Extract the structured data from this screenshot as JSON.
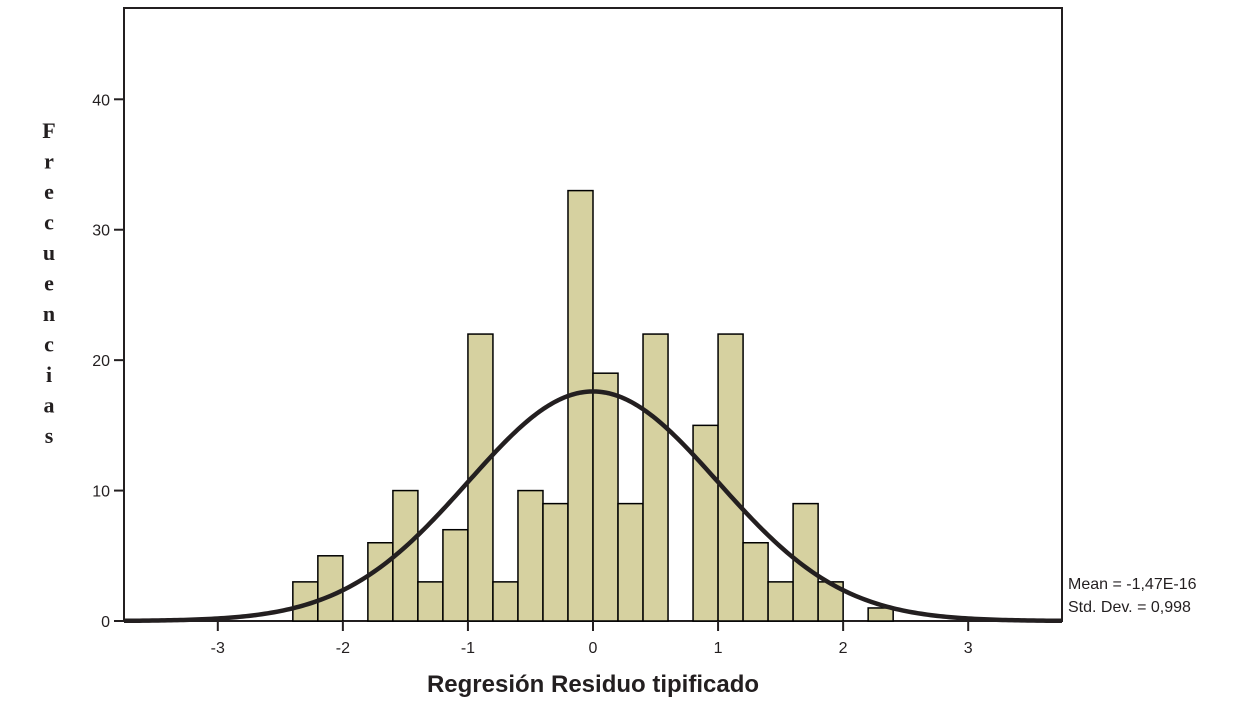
{
  "chart_data": {
    "type": "bar",
    "title": "",
    "xlabel": "Regresión Residuo tipificado",
    "ylabel": "Frecuencias",
    "xlim": [
      -3.75,
      3.75
    ],
    "ylim": [
      0,
      47
    ],
    "x_ticks": [
      -3,
      -2,
      -1,
      0,
      1,
      2,
      3
    ],
    "x_tick_labels": [
      "-3",
      "-2",
      "-1",
      "0",
      "1",
      "2",
      "3"
    ],
    "y_ticks": [
      0,
      10,
      20,
      30,
      40
    ],
    "y_tick_labels": [
      "0",
      "10",
      "20",
      "30",
      "40"
    ],
    "grid": false,
    "bar_color": "#d6d1a0",
    "bar_edge_color": "#000000",
    "bins": [
      {
        "start": -2.4,
        "end": -2.2,
        "value": 3
      },
      {
        "start": -2.2,
        "end": -2.0,
        "value": 5
      },
      {
        "start": -2.0,
        "end": -1.8,
        "value": 0
      },
      {
        "start": -1.8,
        "end": -1.6,
        "value": 6
      },
      {
        "start": -1.6,
        "end": -1.4,
        "value": 10
      },
      {
        "start": -1.4,
        "end": -1.2,
        "value": 3
      },
      {
        "start": -1.2,
        "end": -1.0,
        "value": 7
      },
      {
        "start": -1.0,
        "end": -0.8,
        "value": 22
      },
      {
        "start": -0.8,
        "end": -0.6,
        "value": 3
      },
      {
        "start": -0.6,
        "end": -0.4,
        "value": 10
      },
      {
        "start": -0.4,
        "end": -0.2,
        "value": 9
      },
      {
        "start": -0.2,
        "end": 0.0,
        "value": 33
      },
      {
        "start": 0.0,
        "end": 0.2,
        "value": 19
      },
      {
        "start": 0.2,
        "end": 0.4,
        "value": 9
      },
      {
        "start": 0.4,
        "end": 0.6,
        "value": 22
      },
      {
        "start": 0.6,
        "end": 0.8,
        "value": 0
      },
      {
        "start": 0.8,
        "end": 1.0,
        "value": 15
      },
      {
        "start": 1.0,
        "end": 1.2,
        "value": 22
      },
      {
        "start": 1.2,
        "end": 1.4,
        "value": 6
      },
      {
        "start": 1.4,
        "end": 1.6,
        "value": 3
      },
      {
        "start": 1.6,
        "end": 1.8,
        "value": 9
      },
      {
        "start": 1.8,
        "end": 2.0,
        "value": 3
      },
      {
        "start": 2.0,
        "end": 2.2,
        "value": 0
      },
      {
        "start": 2.2,
        "end": 2.4,
        "value": 1
      }
    ],
    "normal_curve": {
      "mean": -1.47e-16,
      "std_dev": 0.998,
      "peak": 17.6,
      "color": "#231f20"
    },
    "annotations": {
      "mean_label": "Mean = -1,47E-16",
      "std_label": "Std. Dev. = 0,998"
    }
  }
}
